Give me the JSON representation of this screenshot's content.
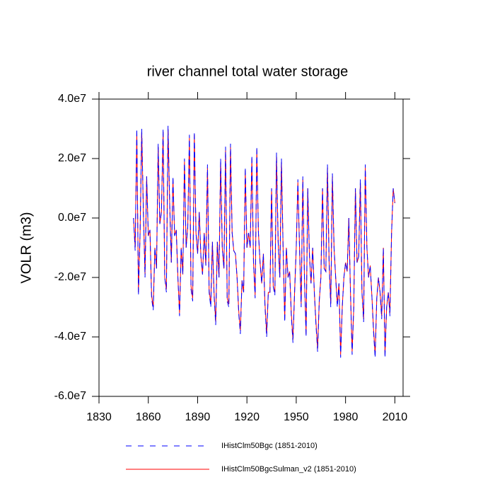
{
  "chart_data": {
    "type": "line",
    "title": "river channel total water storage",
    "y_label": "VOLR  (m3)",
    "xlim": [
      1830,
      2015
    ],
    "xticks": [
      1830,
      1860,
      1890,
      1920,
      1950,
      1980,
      2010
    ],
    "ylim": [
      -60000000.0,
      40000000.0
    ],
    "yticks": [
      {
        "value": -60000000.0,
        "label": "-6.0e7"
      },
      {
        "value": -40000000.0,
        "label": "-4.0e7"
      },
      {
        "value": -20000000.0,
        "label": "-2.0e7"
      },
      {
        "value": 0,
        "label": "0.0e7"
      },
      {
        "value": 20000000.0,
        "label": "2.0e7"
      },
      {
        "value": 40000000.0,
        "label": "4.0e7"
      }
    ],
    "x": [
      1851,
      1852,
      1853,
      1854,
      1855,
      1856,
      1857,
      1858,
      1859,
      1860,
      1861,
      1862,
      1863,
      1864,
      1865,
      1866,
      1867,
      1868,
      1869,
      1870,
      1871,
      1872,
      1873,
      1874,
      1875,
      1876,
      1877,
      1878,
      1879,
      1880,
      1881,
      1882,
      1883,
      1884,
      1885,
      1886,
      1887,
      1888,
      1889,
      1890,
      1891,
      1892,
      1893,
      1894,
      1895,
      1896,
      1897,
      1898,
      1899,
      1900,
      1901,
      1902,
      1903,
      1904,
      1905,
      1906,
      1907,
      1908,
      1909,
      1910,
      1911,
      1912,
      1913,
      1914,
      1915,
      1916,
      1917,
      1918,
      1919,
      1920,
      1921,
      1922,
      1923,
      1924,
      1925,
      1926,
      1927,
      1928,
      1929,
      1930,
      1931,
      1932,
      1933,
      1934,
      1935,
      1936,
      1937,
      1938,
      1939,
      1940,
      1941,
      1942,
      1943,
      1944,
      1945,
      1946,
      1947,
      1948,
      1949,
      1950,
      1951,
      1952,
      1953,
      1954,
      1955,
      1956,
      1957,
      1958,
      1959,
      1960,
      1961,
      1962,
      1963,
      1964,
      1965,
      1966,
      1967,
      1968,
      1969,
      1970,
      1971,
      1972,
      1973,
      1974,
      1975,
      1976,
      1977,
      1978,
      1979,
      1980,
      1981,
      1982,
      1983,
      1984,
      1985,
      1986,
      1987,
      1988,
      1989,
      1990,
      1991,
      1992,
      1993,
      1994,
      1995,
      1996,
      1997,
      1998,
      1999,
      2000,
      2001,
      2002,
      2003,
      2004,
      2005,
      2006,
      2007,
      2008,
      2009,
      2010
    ],
    "series": [
      {
        "name": "IHistClm50Bgc (1851-2010)",
        "color": "#0000ff",
        "dashed": true,
        "values": [
          0.0,
          -11000000.0,
          30000000.0,
          -26000000.0,
          -5000000.0,
          30000000.0,
          2000000.0,
          -20000000.0,
          14000000.0,
          -6000000.0,
          -4000000.0,
          -27000000.0,
          -31000000.0,
          -10000000.0,
          -17000000.0,
          25000000.0,
          -2000000.0,
          2000000.0,
          30000000.0,
          -20000000.0,
          -25000000.0,
          31000000.0,
          5000000.0,
          -15000000.0,
          14000000.0,
          -6000000.0,
          -4000000.0,
          -20000000.0,
          -33000000.0,
          -10000000.0,
          -19000000.0,
          20000000.0,
          -10000000.0,
          -3000000.0,
          28000000.0,
          -24000000.0,
          -28000000.0,
          29000000.0,
          -5000000.0,
          -12000000.0,
          2000000.0,
          -13000000.0,
          -19000000.0,
          -5000000.0,
          -16000000.0,
          18000000.0,
          -25000000.0,
          -30000000.0,
          -8000000.0,
          -26000000.0,
          -36000000.0,
          -8000000.0,
          -20000000.0,
          20000000.0,
          -10000000.0,
          -17000000.0,
          24000000.0,
          -28000000.0,
          -30000000.0,
          25000000.0,
          -5000000.0,
          -11000000.0,
          -12000000.0,
          -20000000.0,
          -32000000.0,
          -39000000.0,
          -21000000.0,
          -25000000.0,
          17000000.0,
          -10000000.0,
          -5000000.0,
          -10000000.0,
          21000000.0,
          -15000000.0,
          -27000000.0,
          24000000.0,
          -5000000.0,
          -15000000.0,
          -22000000.0,
          -12000000.0,
          -30000000.0,
          -40000000.0,
          -25000000.0,
          -25000000.0,
          10000000.0,
          -23000000.0,
          -26000000.0,
          22000000.0,
          -8000000.0,
          -20000000.0,
          20000000.0,
          -10000000.0,
          -35000000.0,
          -10000000.0,
          -20000000.0,
          -18000000.0,
          -33000000.0,
          -42000000.0,
          -25000000.0,
          -10000000.0,
          13000000.0,
          -10000000.0,
          -30000000.0,
          14000000.0,
          -20000000.0,
          -40000000.0,
          10000000.0,
          -12000000.0,
          -22000000.0,
          -10000000.0,
          -25000000.0,
          -36000000.0,
          -45000000.0,
          -28000000.0,
          -20000000.0,
          10000000.0,
          -17000000.0,
          -18000000.0,
          18000000.0,
          -15000000.0,
          -30000000.0,
          15000000.0,
          -10000000.0,
          -20000000.0,
          -30000000.0,
          -22000000.0,
          -47000000.0,
          -30000000.0,
          -20000000.0,
          -15000000.0,
          -18000000.0,
          0.0,
          -25000000.0,
          -46000000.0,
          -30000000.0,
          10000000.0,
          -15000000.0,
          -13000000.0,
          13000000.0,
          -25000000.0,
          -35000000.0,
          18000000.0,
          -10000000.0,
          -20000000.0,
          -16000000.0,
          -26000000.0,
          -38000000.0,
          -47000000.0,
          -27000000.0,
          -20000000.0,
          -25000000.0,
          -34000000.0,
          -10000000.0,
          -47000000.0,
          -30000000.0,
          -25000000.0,
          -33000000.0,
          -5000000.0,
          10000000.0,
          5000000.0
        ]
      },
      {
        "name": "IHistClm50BgcSulman_v2 (1851-2010)",
        "color": "#ff0000",
        "dashed": false,
        "values": [
          0.0,
          -10000000.0,
          29000000.0,
          -25000000.0,
          -5000000.0,
          29000000.0,
          2000000.0,
          -19000000.0,
          14000000.0,
          -6000000.0,
          -4000000.0,
          -26000000.0,
          -30000000.0,
          -10000000.0,
          -17000000.0,
          24000000.0,
          -2000000.0,
          2000000.0,
          29000000.0,
          -20000000.0,
          -24000000.0,
          30000000.0,
          5000000.0,
          -15000000.0,
          13000000.0,
          -6000000.0,
          -4000000.0,
          -20000000.0,
          -32000000.0,
          -10000000.0,
          -19000000.0,
          19000000.0,
          -10000000.0,
          -3000000.0,
          27000000.0,
          -23000000.0,
          -27000000.0,
          28000000.0,
          -5000000.0,
          -12000000.0,
          2000000.0,
          -13000000.0,
          -19000000.0,
          -5000000.0,
          -16000000.0,
          17000000.0,
          -24000000.0,
          -29000000.0,
          -8000000.0,
          -25000000.0,
          -35000000.0,
          -8000000.0,
          -20000000.0,
          19000000.0,
          -10000000.0,
          -17000000.0,
          23000000.0,
          -27000000.0,
          -29000000.0,
          24000000.0,
          -5000000.0,
          -11000000.0,
          -12000000.0,
          -20000000.0,
          -31000000.0,
          -38000000.0,
          -21000000.0,
          -25000000.0,
          16000000.0,
          -10000000.0,
          -5000000.0,
          -10000000.0,
          20000000.0,
          -15000000.0,
          -26000000.0,
          23000000.0,
          -5000000.0,
          -15000000.0,
          -22000000.0,
          -12000000.0,
          -29000000.0,
          -39000000.0,
          -25000000.0,
          -25000000.0,
          10000000.0,
          -23000000.0,
          -25000000.0,
          21000000.0,
          -8000000.0,
          -20000000.0,
          19000000.0,
          -10000000.0,
          -34000000.0,
          -10000000.0,
          -20000000.0,
          -18000000.0,
          -32000000.0,
          -41000000.0,
          -25000000.0,
          -10000000.0,
          12000000.0,
          -10000000.0,
          -29000000.0,
          13000000.0,
          -20000000.0,
          -39000000.0,
          10000000.0,
          -12000000.0,
          -22000000.0,
          -10000000.0,
          -25000000.0,
          -35000000.0,
          -44000000.0,
          -28000000.0,
          -20000000.0,
          10000000.0,
          -17000000.0,
          -18000000.0,
          17000000.0,
          -15000000.0,
          -29000000.0,
          14000000.0,
          -10000000.0,
          -20000000.0,
          -29000000.0,
          -22000000.0,
          -46000000.0,
          -30000000.0,
          -20000000.0,
          -15000000.0,
          -18000000.0,
          0.0,
          -25000000.0,
          -45000000.0,
          -30000000.0,
          10000000.0,
          -15000000.0,
          -13000000.0,
          12000000.0,
          -25000000.0,
          -34000000.0,
          17000000.0,
          -10000000.0,
          -20000000.0,
          -16000000.0,
          -26000000.0,
          -37000000.0,
          -46000000.0,
          -27000000.0,
          -20000000.0,
          -25000000.0,
          -33000000.0,
          -10000000.0,
          -46000000.0,
          -30000000.0,
          -25000000.0,
          -32000000.0,
          -5000000.0,
          10000000.0,
          5000000.0
        ]
      }
    ]
  }
}
